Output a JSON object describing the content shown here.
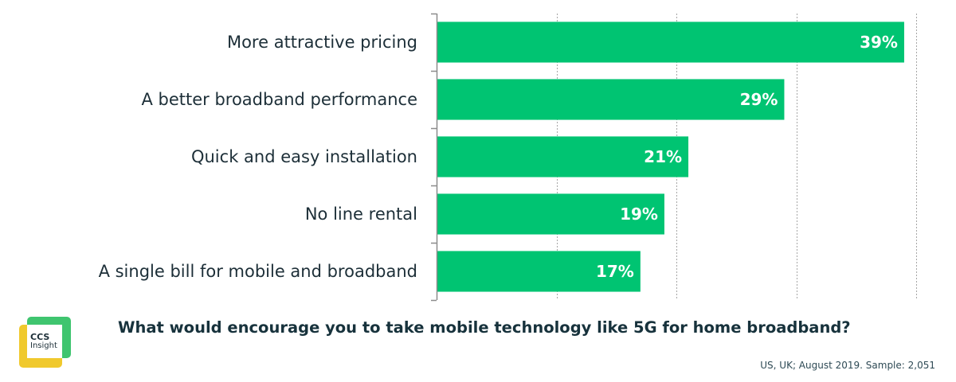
{
  "chart_data": {
    "type": "bar",
    "orientation": "horizontal",
    "categories": [
      "More attractive pricing",
      "A better broadband performance",
      "Quick and easy installation",
      "No line rental",
      "A single bill for mobile and broadband"
    ],
    "values": [
      39,
      29,
      21,
      19,
      17
    ],
    "value_labels": [
      "39%",
      "29%",
      "21%",
      "19%",
      "17%"
    ],
    "title": "What would encourage you to take mobile technology like 5G for home broadband?",
    "xlabel": "",
    "ylabel": "",
    "xlim": [
      0,
      40
    ],
    "gridlines": [
      10,
      20,
      30,
      40
    ],
    "grid": true,
    "legend": "none",
    "bar_color": "#00c472"
  },
  "caption": "What would encourage you to take mobile technology like 5G for home broadband?",
  "source": "US, UK; August 2019. Sample: 2,051",
  "logo": {
    "line1": "CCS",
    "line2": "Insight"
  }
}
